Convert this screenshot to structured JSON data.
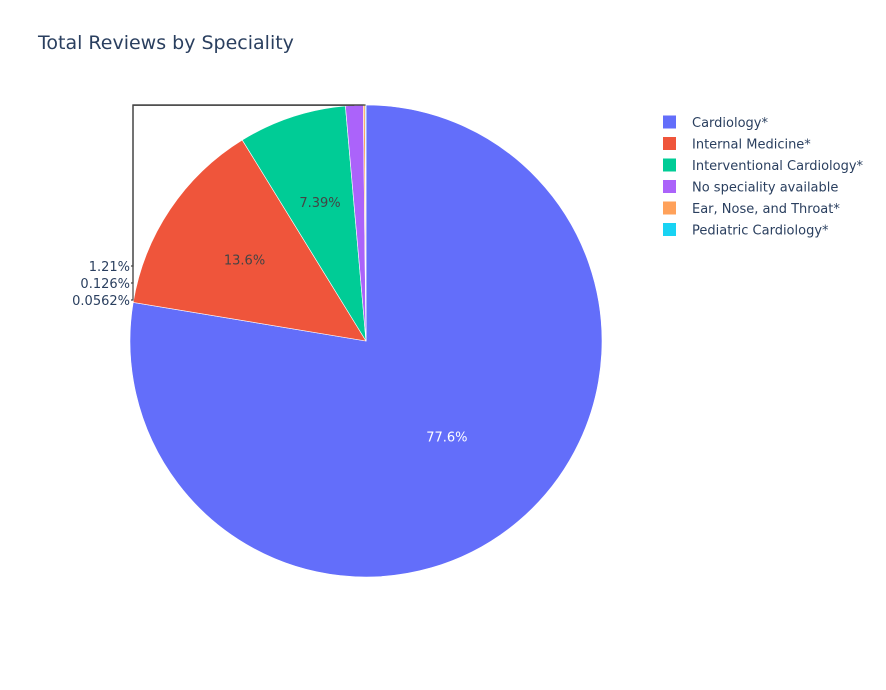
{
  "chart_data": {
    "type": "pie",
    "title": "Total Reviews by Speciality",
    "legend_position": "top-right",
    "slices": [
      {
        "label": "Cardiology*",
        "percent": 77.6,
        "display": "77.6%",
        "color": "#636efa"
      },
      {
        "label": "Internal Medicine*",
        "percent": 13.6,
        "display": "13.6%",
        "color": "#ef553b"
      },
      {
        "label": "Interventional Cardiology*",
        "percent": 7.39,
        "display": "7.39%",
        "color": "#00cc96"
      },
      {
        "label": "No speciality available",
        "percent": 1.21,
        "display": "1.21%",
        "color": "#ab63fa"
      },
      {
        "label": "Ear, Nose, and Throat*",
        "percent": 0.126,
        "display": "0.126%",
        "color": "#ffa15a"
      },
      {
        "label": "Pediatric Cardiology*",
        "percent": 0.0562,
        "display": "0.0562%",
        "color": "#19d3f3"
      }
    ]
  }
}
